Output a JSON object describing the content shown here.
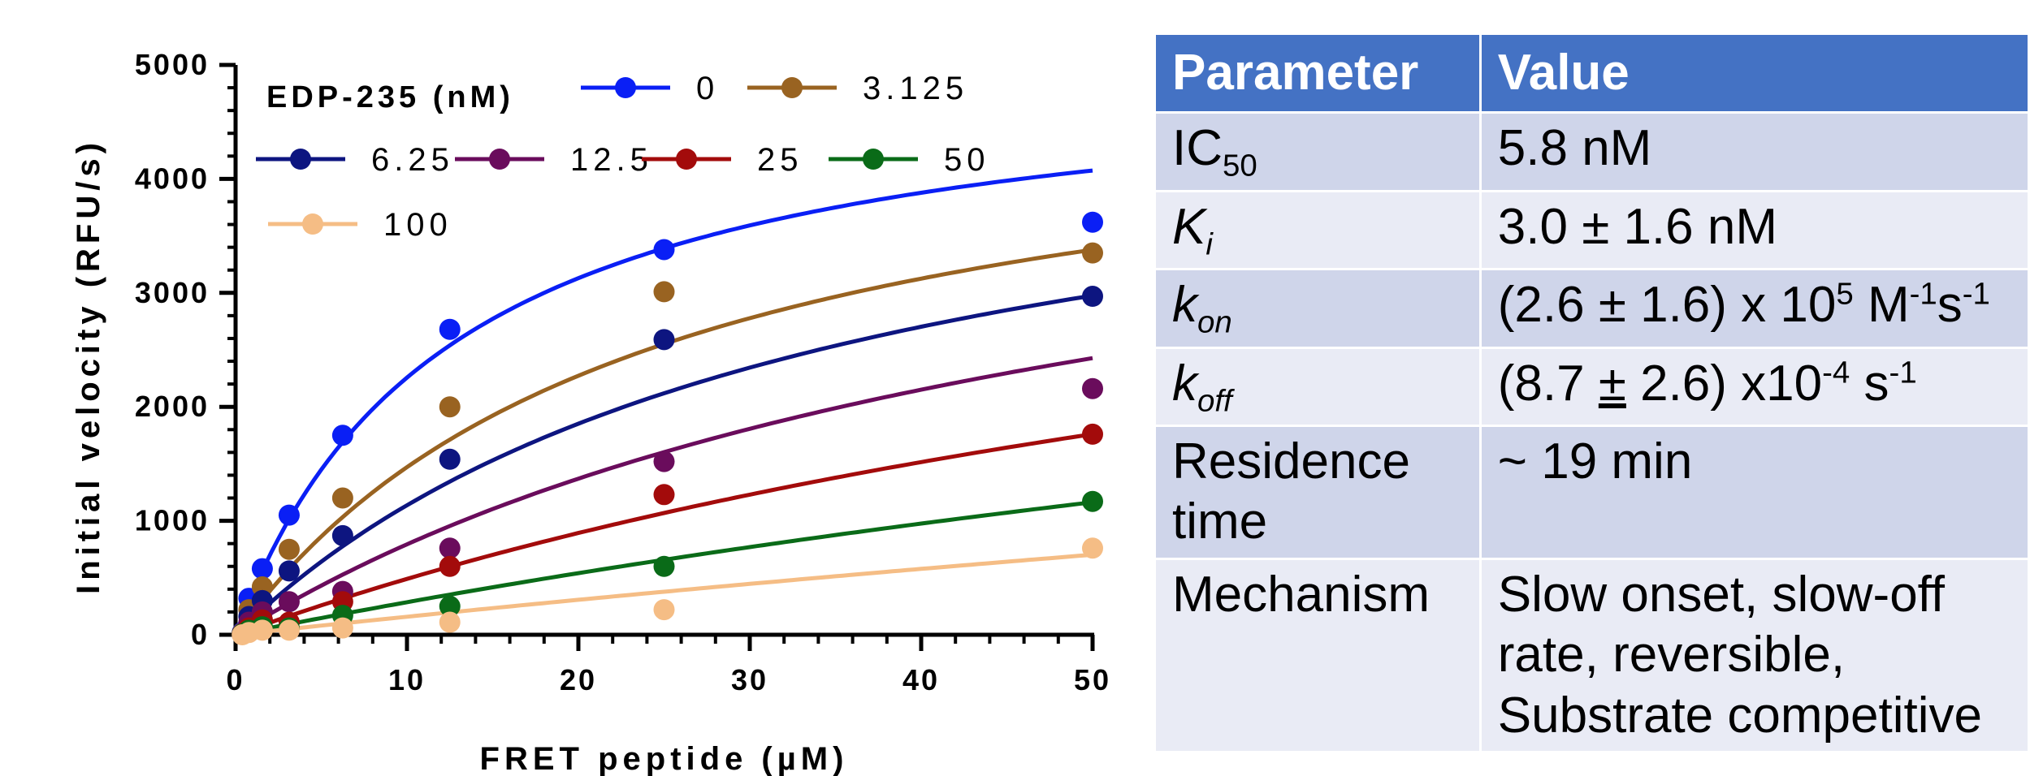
{
  "chart_data": {
    "type": "scatter",
    "xlabel": "FRET peptide (µM)",
    "ylabel": "Initial velocity (RFU/s)",
    "xlim": [
      0,
      50
    ],
    "ylim": [
      0,
      5000
    ],
    "x_ticks": [
      "0",
      "10",
      "20",
      "30",
      "40",
      "50"
    ],
    "y_ticks": [
      "0",
      "1000",
      "2000",
      "3000",
      "4000",
      "5000"
    ],
    "legend_title": "EDP-235 (nM)",
    "legend_position": "top-left",
    "grid": false,
    "x": [
      0.39,
      0.78,
      1.56,
      3.125,
      6.25,
      12.5,
      25,
      50
    ],
    "series": [
      {
        "name": "0",
        "color": "#0a1ff5",
        "values": [
          20,
          320,
          580,
          1050,
          1750,
          2680,
          3380,
          3620
        ],
        "fit": [
          5100,
          12.6
        ]
      },
      {
        "name": "3.125",
        "color": "#996321",
        "values": [
          15,
          220,
          420,
          750,
          1200,
          2000,
          3010,
          3350
        ],
        "fit": [
          5000,
          24
        ]
      },
      {
        "name": "6.25",
        "color": "#0d1580",
        "values": [
          10,
          160,
          300,
          560,
          870,
          1540,
          2590,
          2970
        ],
        "fit": [
          5000,
          34
        ]
      },
      {
        "name": "12.5",
        "color": "#6a0c5c",
        "values": [
          10,
          110,
          200,
          290,
          380,
          760,
          1520,
          2160
        ],
        "fit": [
          5000,
          53
        ]
      },
      {
        "name": "25",
        "color": "#a30b0b",
        "values": [
          5,
          60,
          130,
          110,
          290,
          600,
          1230,
          1760
        ],
        "fit": [
          5000,
          92
        ]
      },
      {
        "name": "50",
        "color": "#0a6b18",
        "values": [
          5,
          40,
          70,
          60,
          170,
          250,
          600,
          1170
        ],
        "fit": [
          5000,
          165
        ]
      },
      {
        "name": "100",
        "color": "#f5bd85",
        "values": [
          0,
          20,
          40,
          40,
          60,
          110,
          220,
          760
        ],
        "fit": [
          5000,
          306
        ]
      }
    ]
  },
  "table": {
    "headers": [
      "Parameter",
      "Value"
    ],
    "ic50": {
      "name": "IC",
      "sub": "50",
      "value": "5.8 nM"
    },
    "ki": {
      "name": "K",
      "sub": "i",
      "value": "3.0 ± 1.6 nM"
    },
    "kon": {
      "name": "k",
      "sub": "on",
      "v1": "(2.6 ± 1.6) x 10",
      "exp1": "5",
      "v2": " M",
      "exp2": "-1",
      "v3": "s",
      "exp3": "-1"
    },
    "koff": {
      "name": "k",
      "sub": "off",
      "v1": "(8.7 ",
      "pm": "±",
      "v2": " 2.6) x10",
      "exp1": "-4",
      "v3": " s",
      "exp2": "-1"
    },
    "residence": {
      "name": "Residence time",
      "value": "~ 19 min"
    },
    "mechanism": {
      "name": "Mechanism",
      "value": "Slow onset, slow-off rate, reversible, Substrate competitive"
    }
  }
}
